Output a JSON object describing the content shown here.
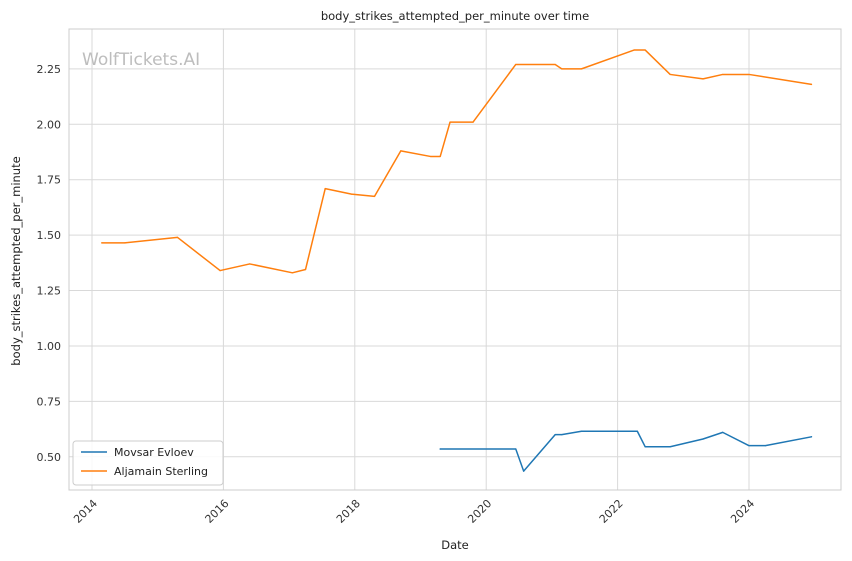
{
  "chart_data": {
    "type": "line",
    "title": "body_strikes_attempted_per_minute over time",
    "xlabel": "Date",
    "ylabel": "body_strikes_attempted_per_minute",
    "watermark": "WolfTickets.AI",
    "xlim": [
      2013.65,
      2025.4
    ],
    "ylim": [
      0.35,
      2.43
    ],
    "x_ticks": [
      2014,
      2016,
      2018,
      2020,
      2022,
      2024
    ],
    "y_ticks": [
      0.5,
      0.75,
      1.0,
      1.25,
      1.5,
      1.75,
      2.0,
      2.25
    ],
    "y_tick_labels": [
      "0.50",
      "0.75",
      "1.00",
      "1.25",
      "1.50",
      "1.75",
      "2.00",
      "2.25"
    ],
    "grid": true,
    "legend_position": "bottom-left",
    "series": [
      {
        "name": "Movsar Evloev",
        "color": "#1f77b4",
        "x": [
          2019.3,
          2020.45,
          2020.57,
          2021.05,
          2021.15,
          2021.45,
          2022.3,
          2022.42,
          2022.8,
          2023.3,
          2023.6,
          2024.0,
          2024.25,
          2024.95
        ],
        "y": [
          0.535,
          0.535,
          0.435,
          0.6,
          0.6,
          0.615,
          0.615,
          0.545,
          0.545,
          0.58,
          0.61,
          0.55,
          0.55,
          0.59
        ]
      },
      {
        "name": "Aljamain Sterling",
        "color": "#ff7f0e",
        "x": [
          2014.15,
          2014.5,
          2015.3,
          2015.95,
          2016.4,
          2017.05,
          2017.25,
          2017.55,
          2017.95,
          2018.3,
          2018.7,
          2019.15,
          2019.3,
          2019.45,
          2019.8,
          2020.45,
          2021.05,
          2021.15,
          2021.45,
          2022.25,
          2022.42,
          2022.8,
          2023.3,
          2023.6,
          2024.0,
          2024.95
        ],
        "y": [
          1.465,
          1.465,
          1.49,
          1.34,
          1.37,
          1.33,
          1.345,
          1.71,
          1.685,
          1.675,
          1.88,
          1.855,
          1.855,
          2.01,
          2.01,
          2.27,
          2.27,
          2.25,
          2.25,
          2.335,
          2.335,
          2.225,
          2.205,
          2.225,
          2.225,
          2.18
        ]
      }
    ]
  }
}
